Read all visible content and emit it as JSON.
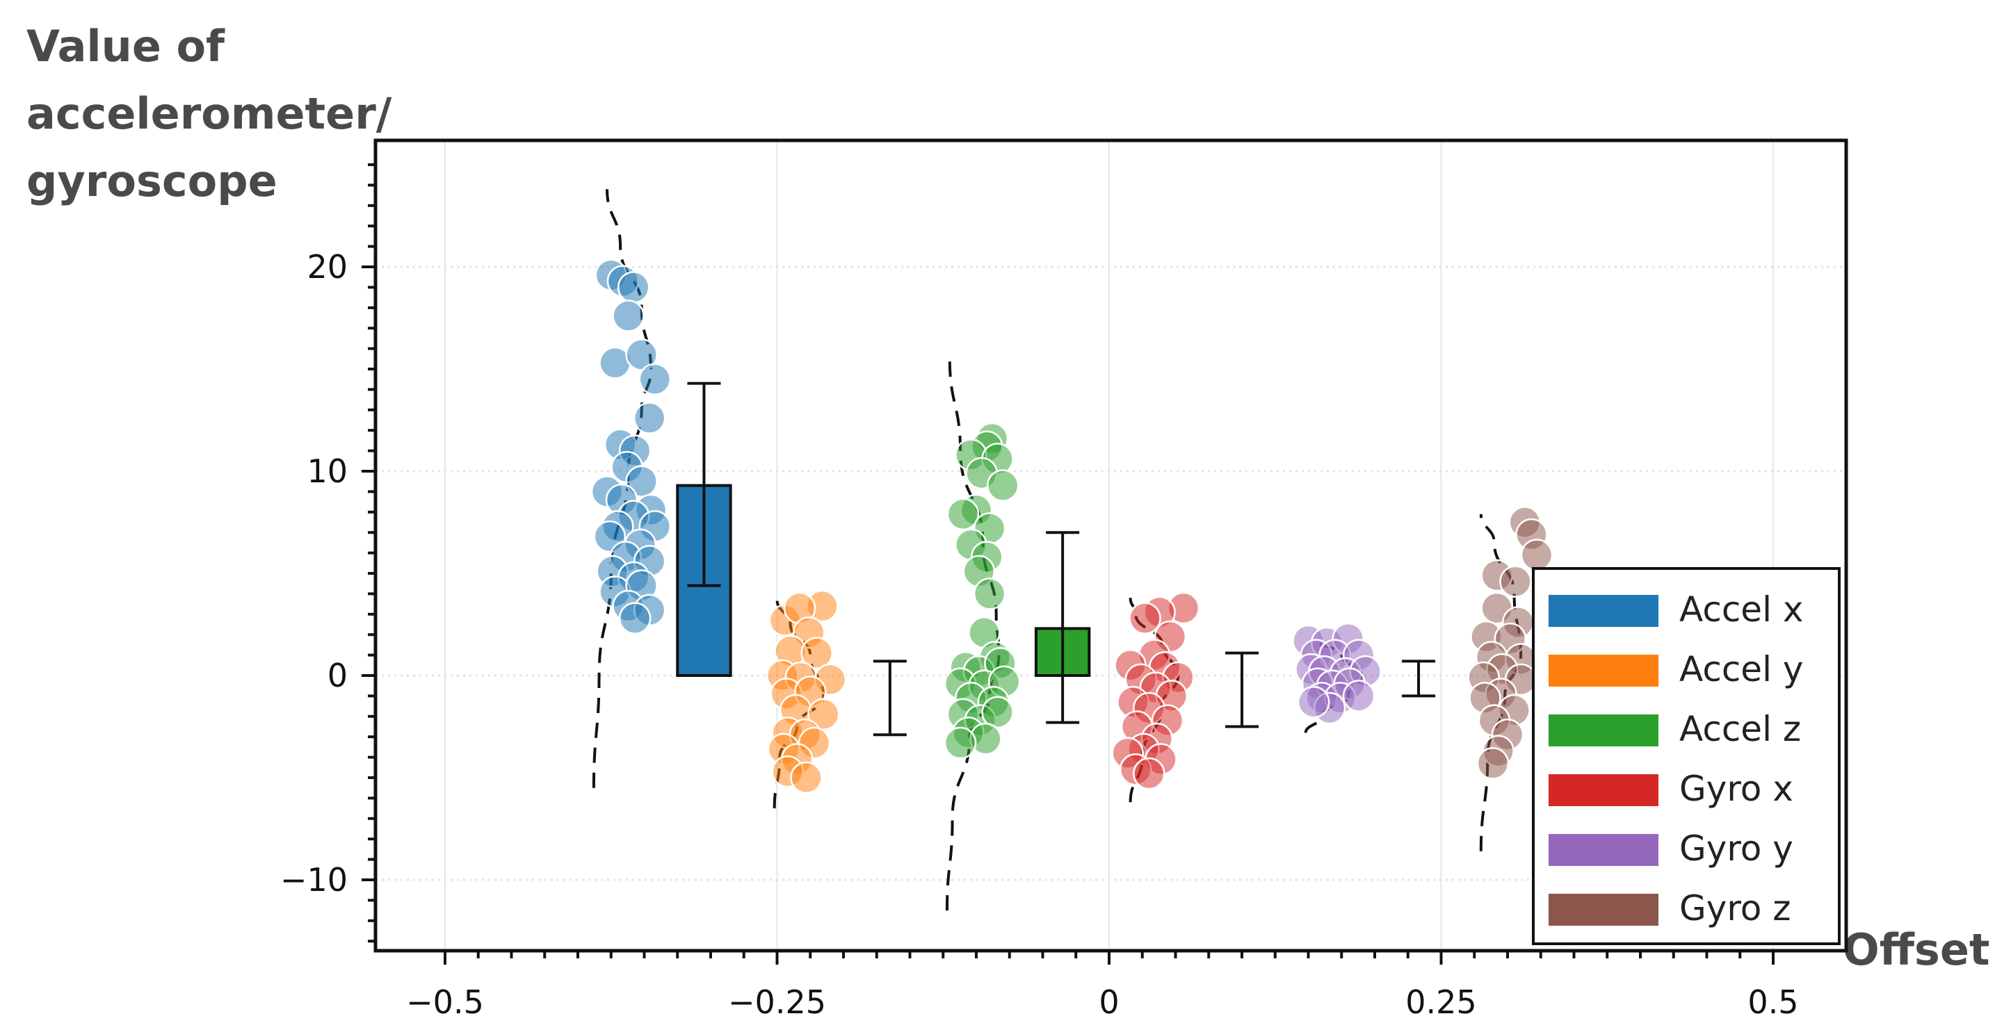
{
  "chart_data": {
    "type": "scatter",
    "title": "",
    "ylabel_lines": [
      "Value of",
      "accelerometer/",
      "gyroscope"
    ],
    "xlabel": "Offset",
    "xlim": [
      -0.53,
      0.53
    ],
    "ylim": [
      -13.5,
      26
    ],
    "xticks": [
      -0.5,
      -0.25,
      0,
      0.25,
      0.5
    ],
    "xtick_labels": [
      "−0.5",
      "−0.25",
      "0",
      "0.25",
      "0.5"
    ],
    "yticks": [
      -10,
      0,
      10,
      20
    ],
    "ytick_labels": [
      "−10",
      "0",
      "10",
      "20"
    ],
    "grid": true,
    "legend_position": "lower-right",
    "series": [
      {
        "name": "Accel x",
        "color": "#1f77b4",
        "bar": {
          "x": -0.305,
          "width": 0.04,
          "value": 9.3
        },
        "errorbar": {
          "x": -0.305,
          "low": 4.4,
          "high": 14.3
        },
        "kde": [
          [
            -0.388,
            -5.5
          ],
          [
            -0.384,
            0
          ],
          [
            -0.375,
            5
          ],
          [
            -0.362,
            10
          ],
          [
            -0.352,
            13
          ],
          [
            -0.345,
            15
          ],
          [
            -0.352,
            18
          ],
          [
            -0.368,
            21
          ],
          [
            -0.378,
            23.8
          ]
        ],
        "points": [
          [
            -0.375,
            19.6
          ],
          [
            -0.366,
            19.3
          ],
          [
            -0.358,
            19
          ],
          [
            -0.362,
            17.6
          ],
          [
            -0.372,
            15.3
          ],
          [
            -0.352,
            15.7
          ],
          [
            -0.342,
            14.5
          ],
          [
            -0.346,
            12.6
          ],
          [
            -0.368,
            11.3
          ],
          [
            -0.357,
            11
          ],
          [
            -0.363,
            10.2
          ],
          [
            -0.352,
            9.5
          ],
          [
            -0.378,
            9
          ],
          [
            -0.367,
            8.6
          ],
          [
            -0.345,
            8.1
          ],
          [
            -0.358,
            7.8
          ],
          [
            -0.37,
            7.3
          ],
          [
            -0.342,
            7.3
          ],
          [
            -0.376,
            6.8
          ],
          [
            -0.353,
            6.4
          ],
          [
            -0.364,
            5.8
          ],
          [
            -0.346,
            5.6
          ],
          [
            -0.374,
            5.1
          ],
          [
            -0.358,
            4.8
          ],
          [
            -0.372,
            4.1
          ],
          [
            -0.352,
            4.4
          ],
          [
            -0.362,
            3.4
          ],
          [
            -0.346,
            3.2
          ],
          [
            -0.357,
            2.8
          ]
        ]
      },
      {
        "name": "Accel y",
        "color": "#ff7f0e",
        "errorbar": {
          "x": -0.165,
          "low": -2.9,
          "high": 0.7
        },
        "kde": [
          [
            -0.252,
            -6.5
          ],
          [
            -0.248,
            -4
          ],
          [
            -0.235,
            -2.5
          ],
          [
            -0.215,
            -1
          ],
          [
            -0.225,
            1
          ],
          [
            -0.24,
            2.5
          ],
          [
            -0.25,
            3.7
          ]
        ],
        "points": [
          [
            -0.244,
            2.7
          ],
          [
            -0.216,
            3.4
          ],
          [
            -0.233,
            3.3
          ],
          [
            -0.226,
            2.1
          ],
          [
            -0.24,
            1.2
          ],
          [
            -0.22,
            1.1
          ],
          [
            -0.246,
            0
          ],
          [
            -0.232,
            -0.1
          ],
          [
            -0.21,
            -0.2
          ],
          [
            -0.243,
            -0.9
          ],
          [
            -0.225,
            -0.8
          ],
          [
            -0.236,
            -1.7
          ],
          [
            -0.215,
            -1.9
          ],
          [
            -0.242,
            -2.8
          ],
          [
            -0.229,
            -2.9
          ],
          [
            -0.245,
            -3.6
          ],
          [
            -0.222,
            -3.3
          ],
          [
            -0.235,
            -4.1
          ],
          [
            -0.242,
            -4.7
          ],
          [
            -0.228,
            -5.0
          ]
        ]
      },
      {
        "name": "Accel z",
        "color": "#2ca02c",
        "bar": {
          "x": -0.035,
          "width": 0.04,
          "value": 2.3
        },
        "errorbar": {
          "x": -0.035,
          "low": -2.3,
          "high": 7.0
        },
        "kde": [
          [
            -0.122,
            -11.5
          ],
          [
            -0.118,
            -7
          ],
          [
            -0.105,
            -3
          ],
          [
            -0.09,
            -1
          ],
          [
            -0.083,
            1
          ],
          [
            -0.085,
            3
          ],
          [
            -0.095,
            6.5
          ],
          [
            -0.112,
            11
          ],
          [
            -0.12,
            15.5
          ]
        ],
        "points": [
          [
            -0.088,
            11.6
          ],
          [
            -0.092,
            11.2
          ],
          [
            -0.104,
            10.8
          ],
          [
            -0.084,
            10.6
          ],
          [
            -0.096,
            9.9
          ],
          [
            -0.08,
            9.3
          ],
          [
            -0.1,
            8.1
          ],
          [
            -0.11,
            7.9
          ],
          [
            -0.09,
            7.2
          ],
          [
            -0.104,
            6.4
          ],
          [
            -0.092,
            5.8
          ],
          [
            -0.098,
            5.1
          ],
          [
            -0.09,
            4
          ],
          [
            -0.094,
            2.1
          ],
          [
            -0.086,
            0.9
          ],
          [
            -0.108,
            0.4
          ],
          [
            -0.098,
            0.2
          ],
          [
            -0.082,
            0.6
          ],
          [
            -0.112,
            -0.4
          ],
          [
            -0.094,
            -0.5
          ],
          [
            -0.079,
            -0.3
          ],
          [
            -0.104,
            -1.1
          ],
          [
            -0.087,
            -1.3
          ],
          [
            -0.11,
            -1.9
          ],
          [
            -0.097,
            -2.2
          ],
          [
            -0.084,
            -1.8
          ],
          [
            -0.106,
            -2.8
          ],
          [
            -0.093,
            -3.1
          ],
          [
            -0.112,
            -3.3
          ]
        ]
      },
      {
        "name": "Gyro x",
        "color": "#d62728",
        "errorbar": {
          "x": 0.1,
          "low": -2.5,
          "high": 1.1
        },
        "kde": [
          [
            0.016,
            -6.2
          ],
          [
            0.025,
            -4
          ],
          [
            0.04,
            -1.5
          ],
          [
            0.052,
            0
          ],
          [
            0.04,
            1.5
          ],
          [
            0.02,
            3
          ],
          [
            0.016,
            3.8
          ]
        ],
        "points": [
          [
            0.056,
            3.3
          ],
          [
            0.038,
            3.1
          ],
          [
            0.027,
            2.8
          ],
          [
            0.046,
            1.9
          ],
          [
            0.034,
            1
          ],
          [
            0.016,
            0.5
          ],
          [
            0.042,
            0.4
          ],
          [
            0.052,
            -0.1
          ],
          [
            0.024,
            -0.2
          ],
          [
            0.035,
            -0.6
          ],
          [
            0.047,
            -1
          ],
          [
            0.018,
            -1.3
          ],
          [
            0.03,
            -1.6
          ],
          [
            0.044,
            -2.2
          ],
          [
            0.021,
            -2.5
          ],
          [
            0.036,
            -3.1
          ],
          [
            0.026,
            -3.6
          ],
          [
            0.014,
            -3.8
          ],
          [
            0.039,
            -4.1
          ],
          [
            0.02,
            -4.6
          ],
          [
            0.03,
            -4.8
          ]
        ]
      },
      {
        "name": "Gyro y",
        "color": "#9467bd",
        "errorbar": {
          "x": 0.233,
          "low": -1.0,
          "high": 0.7
        },
        "kde": [
          [
            0.148,
            -2.8
          ],
          [
            0.16,
            -2
          ],
          [
            0.18,
            -1
          ],
          [
            0.19,
            0
          ],
          [
            0.175,
            1
          ],
          [
            0.155,
            1.8
          ]
        ],
        "points": [
          [
            0.15,
            1.7
          ],
          [
            0.164,
            1.6
          ],
          [
            0.18,
            1.8
          ],
          [
            0.156,
            1
          ],
          [
            0.17,
            1
          ],
          [
            0.188,
            1
          ],
          [
            0.152,
            0.3
          ],
          [
            0.162,
            0.2
          ],
          [
            0.178,
            0.1
          ],
          [
            0.193,
            0.2
          ],
          [
            0.157,
            -0.4
          ],
          [
            0.168,
            -0.5
          ],
          [
            0.181,
            -0.4
          ],
          [
            0.16,
            -1.1
          ],
          [
            0.174,
            -1.1
          ],
          [
            0.188,
            -1.0
          ],
          [
            0.166,
            -1.6
          ],
          [
            0.154,
            -1.3
          ]
        ]
      },
      {
        "name": "Gyro z",
        "color": "#8c564b",
        "kde": [
          [
            0.28,
            -8.6
          ],
          [
            0.285,
            -4
          ],
          [
            0.298,
            -1
          ],
          [
            0.31,
            1
          ],
          [
            0.305,
            4
          ],
          [
            0.29,
            6.5
          ],
          [
            0.28,
            7.9
          ]
        ],
        "points": [
          [
            0.313,
            7.5
          ],
          [
            0.318,
            6.9
          ],
          [
            0.322,
            5.9
          ],
          [
            0.292,
            4.9
          ],
          [
            0.306,
            4.6
          ],
          [
            0.292,
            3.3
          ],
          [
            0.308,
            2.6
          ],
          [
            0.284,
            1.9
          ],
          [
            0.302,
            1.8
          ],
          [
            0.288,
            0.9
          ],
          [
            0.31,
            0.8
          ],
          [
            0.296,
            0.3
          ],
          [
            0.282,
            -0.1
          ],
          [
            0.31,
            -0.2
          ],
          [
            0.295,
            -0.9
          ],
          [
            0.283,
            -1.1
          ],
          [
            0.305,
            -1.7
          ],
          [
            0.29,
            -2.2
          ],
          [
            0.3,
            -2.9
          ],
          [
            0.293,
            -3.7
          ],
          [
            0.289,
            -4.3
          ]
        ]
      }
    ]
  }
}
